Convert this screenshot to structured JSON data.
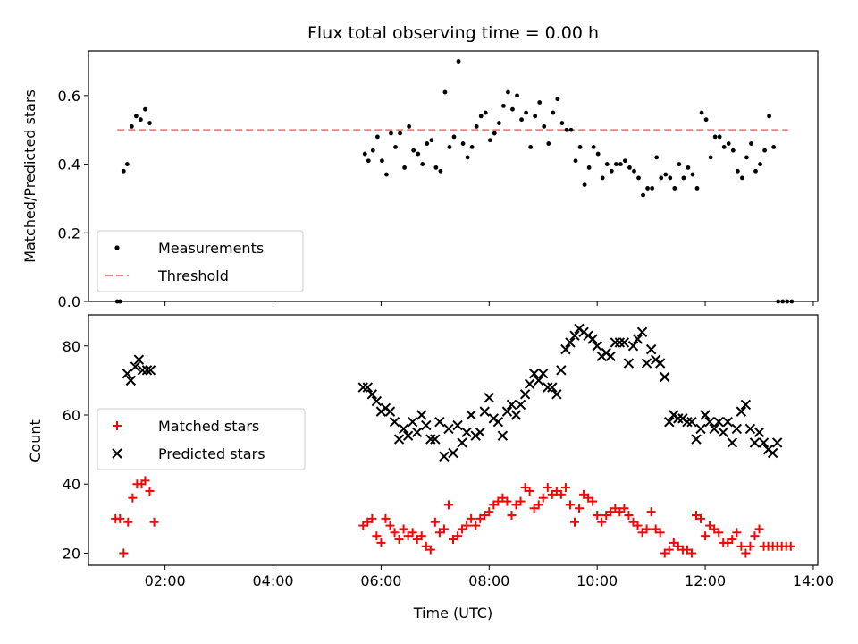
{
  "chart_data": [
    {
      "type": "scatter",
      "title": "Flux total observing time = 0.00 h",
      "ylabel": "Matched/Predicted stars",
      "xlabel": "",
      "xlim": [
        "00:35",
        "14:05"
      ],
      "ylim": [
        0,
        0.73
      ],
      "yticks": [
        0.0,
        0.2,
        0.4,
        0.6
      ],
      "ytick_labels": [
        "0.0",
        "0.2",
        "0.4",
        "0.6"
      ],
      "legend": {
        "placement": "lower-left",
        "entries": [
          "Measurements",
          "Threshold"
        ]
      },
      "threshold": {
        "name": "Threshold",
        "y": 0.5,
        "x": [
          "01:07",
          "13:32"
        ],
        "color": "#f08080"
      },
      "series": [
        {
          "name": "Measurements",
          "color": "#000000",
          "x": [
            "01:07",
            "01:10",
            "01:14",
            "01:18",
            "01:23",
            "01:28",
            "01:33",
            "01:38",
            "01:43",
            "05:42",
            "05:46",
            "05:51",
            "05:56",
            "06:01",
            "06:06",
            "06:11",
            "06:16",
            "06:21",
            "06:26",
            "06:31",
            "06:36",
            "06:41",
            "06:46",
            "06:51",
            "06:56",
            "07:01",
            "07:06",
            "07:11",
            "07:16",
            "07:21",
            "07:26",
            "07:31",
            "07:36",
            "07:41",
            "07:46",
            "07:51",
            "07:56",
            "08:01",
            "08:06",
            "08:11",
            "08:16",
            "08:21",
            "08:26",
            "08:31",
            "08:36",
            "08:41",
            "08:46",
            "08:51",
            "08:56",
            "09:01",
            "09:06",
            "09:11",
            "09:16",
            "09:21",
            "09:26",
            "09:31",
            "09:36",
            "09:41",
            "09:46",
            "09:51",
            "09:56",
            "10:01",
            "10:06",
            "10:11",
            "10:16",
            "10:21",
            "10:26",
            "10:31",
            "10:36",
            "10:41",
            "10:46",
            "10:51",
            "10:56",
            "11:01",
            "11:06",
            "11:11",
            "11:16",
            "11:21",
            "11:26",
            "11:31",
            "11:36",
            "11:41",
            "11:46",
            "11:51",
            "11:56",
            "12:01",
            "12:06",
            "12:11",
            "12:16",
            "12:21",
            "12:26",
            "12:31",
            "12:36",
            "12:41",
            "12:46",
            "12:51",
            "12:56",
            "13:01",
            "13:06",
            "13:11",
            "13:16",
            "13:21",
            "13:26",
            "13:31",
            "13:36"
          ],
          "y": [
            0.0,
            0.0,
            0.38,
            0.4,
            0.51,
            0.54,
            0.53,
            0.56,
            0.52,
            0.43,
            0.41,
            0.44,
            0.48,
            0.41,
            0.37,
            0.49,
            0.45,
            0.49,
            0.39,
            0.51,
            0.44,
            0.43,
            0.4,
            0.46,
            0.47,
            0.39,
            0.38,
            0.61,
            0.45,
            0.48,
            0.7,
            0.46,
            0.42,
            0.45,
            0.51,
            0.54,
            0.55,
            0.47,
            0.49,
            0.52,
            0.57,
            0.61,
            0.56,
            0.6,
            0.53,
            0.55,
            0.45,
            0.54,
            0.58,
            0.51,
            0.46,
            0.55,
            0.59,
            0.52,
            0.5,
            0.5,
            0.41,
            0.45,
            0.34,
            0.39,
            0.45,
            0.43,
            0.36,
            0.4,
            0.38,
            0.4,
            0.4,
            0.41,
            0.39,
            0.38,
            0.36,
            0.31,
            0.33,
            0.33,
            0.42,
            0.36,
            0.37,
            0.36,
            0.33,
            0.4,
            0.36,
            0.39,
            0.37,
            0.33,
            0.55,
            0.53,
            0.42,
            0.48,
            0.48,
            0.45,
            0.46,
            0.44,
            0.38,
            0.36,
            0.42,
            0.46,
            0.38,
            0.4,
            0.44,
            0.54,
            0.45,
            0.0,
            0.0,
            0.0,
            0.0
          ]
        }
      ]
    },
    {
      "type": "scatter",
      "title": "",
      "ylabel": "Count",
      "xlabel": "Time (UTC)",
      "xlim": [
        "00:35",
        "14:05"
      ],
      "ylim": [
        16.5,
        89
      ],
      "yticks": [
        20,
        40,
        60,
        80
      ],
      "ytick_labels": [
        "20",
        "40",
        "60",
        "80"
      ],
      "xticks": [
        "02:00",
        "04:00",
        "06:00",
        "08:00",
        "10:00",
        "12:00",
        "14:00"
      ],
      "xtick_labels": [
        "02:00",
        "04:00",
        "06:00",
        "08:00",
        "10:00",
        "12:00",
        "14:00"
      ],
      "legend": {
        "placement": "center-left",
        "entries": [
          "Matched stars",
          "Predicted stars"
        ]
      },
      "series": [
        {
          "name": "Matched stars",
          "color": "#ff0000",
          "marker": "plus",
          "x": [
            "01:05",
            "01:10",
            "01:14",
            "01:19",
            "01:24",
            "01:29",
            "01:34",
            "01:38",
            "01:43",
            "01:48",
            "05:40",
            "05:45",
            "05:50",
            "05:55",
            "06:00",
            "06:05",
            "06:10",
            "06:15",
            "06:20",
            "06:25",
            "06:30",
            "06:35",
            "06:40",
            "06:45",
            "06:50",
            "06:55",
            "07:00",
            "07:05",
            "07:10",
            "07:15",
            "07:20",
            "07:25",
            "07:30",
            "07:35",
            "07:40",
            "07:45",
            "07:50",
            "07:55",
            "08:00",
            "08:05",
            "08:10",
            "08:15",
            "08:20",
            "08:25",
            "08:30",
            "08:35",
            "08:40",
            "08:45",
            "08:50",
            "08:55",
            "09:00",
            "09:05",
            "09:10",
            "09:15",
            "09:20",
            "09:25",
            "09:30",
            "09:35",
            "09:40",
            "09:45",
            "09:50",
            "09:55",
            "10:00",
            "10:05",
            "10:10",
            "10:15",
            "10:20",
            "10:25",
            "10:30",
            "10:35",
            "10:40",
            "10:45",
            "10:50",
            "10:55",
            "11:00",
            "11:05",
            "11:10",
            "11:15",
            "11:20",
            "11:25",
            "11:30",
            "11:35",
            "11:40",
            "11:45",
            "11:50",
            "11:55",
            "12:00",
            "12:05",
            "12:10",
            "12:15",
            "12:20",
            "12:25",
            "12:30",
            "12:35",
            "12:40",
            "12:45",
            "12:50",
            "12:55",
            "13:00",
            "13:05",
            "13:10",
            "13:15",
            "13:20",
            "13:25",
            "13:30",
            "13:35"
          ],
          "y": [
            30,
            30,
            20,
            29,
            36,
            40,
            40,
            41,
            38,
            29,
            28,
            29,
            30,
            25,
            23,
            30,
            28,
            26,
            24,
            27,
            25,
            26,
            24,
            25,
            22,
            21,
            29,
            26,
            27,
            34,
            24,
            25,
            27,
            28,
            30,
            28,
            30,
            31,
            32,
            34,
            35,
            36,
            35,
            31,
            34,
            35,
            39,
            38,
            33,
            34,
            36,
            39,
            37,
            38,
            37,
            39,
            34,
            29,
            33,
            37,
            36,
            35,
            31,
            29,
            31,
            32,
            33,
            32,
            33,
            31,
            29,
            28,
            26,
            27,
            32,
            27,
            26,
            20,
            21,
            23,
            22,
            21,
            21,
            20,
            31,
            30,
            25,
            28,
            27,
            26,
            23,
            23,
            24,
            26,
            22,
            20,
            22,
            25,
            27,
            22,
            22,
            22,
            22,
            22,
            22,
            22
          ],
          "yy": []
        },
        {
          "name": "Predicted stars",
          "color": "#000000",
          "marker": "x",
          "x": [
            "01:18",
            "01:22",
            "01:27",
            "01:31",
            "01:35",
            "01:40",
            "01:44",
            "05:40",
            "05:45",
            "05:50",
            "05:55",
            "06:00",
            "06:05",
            "06:10",
            "06:15",
            "06:20",
            "06:25",
            "06:30",
            "06:35",
            "06:40",
            "06:45",
            "06:50",
            "06:55",
            "07:00",
            "07:05",
            "07:10",
            "07:15",
            "07:20",
            "07:25",
            "07:30",
            "07:35",
            "07:40",
            "07:45",
            "07:50",
            "07:55",
            "08:00",
            "08:05",
            "08:10",
            "08:15",
            "08:20",
            "08:25",
            "08:30",
            "08:35",
            "08:40",
            "08:45",
            "08:50",
            "08:55",
            "09:00",
            "09:05",
            "09:10",
            "09:15",
            "09:20",
            "09:25",
            "09:30",
            "09:35",
            "09:40",
            "09:45",
            "09:50",
            "09:55",
            "10:00",
            "10:05",
            "10:10",
            "10:15",
            "10:20",
            "10:25",
            "10:30",
            "10:35",
            "10:40",
            "10:45",
            "10:50",
            "10:55",
            "11:00",
            "11:05",
            "11:10",
            "11:15",
            "11:20",
            "11:25",
            "11:30",
            "11:35",
            "11:40",
            "11:45",
            "11:50",
            "11:55",
            "12:00",
            "12:05",
            "12:10",
            "12:15",
            "12:20",
            "12:25",
            "12:30",
            "12:35",
            "12:40",
            "12:45",
            "12:50",
            "12:55",
            "13:00",
            "13:05",
            "13:10",
            "13:15",
            "13:20"
          ],
          "y": [
            72,
            70,
            74,
            76,
            73,
            73,
            73,
            68,
            68,
            66,
            64,
            61,
            62,
            61,
            58,
            53,
            56,
            54,
            58,
            55,
            60,
            57,
            53,
            53,
            58,
            48,
            56,
            49,
            57,
            52,
            55,
            60,
            54,
            55,
            61,
            65,
            59,
            58,
            54,
            61,
            63,
            60,
            63,
            66,
            69,
            72,
            70,
            72,
            68,
            68,
            66,
            73,
            79,
            81,
            83,
            85,
            84,
            83,
            82,
            80,
            77,
            78,
            77,
            81,
            81,
            81,
            75,
            80,
            82,
            84,
            75,
            79,
            76,
            75,
            71,
            58,
            60,
            59,
            59,
            58,
            58,
            53,
            56,
            60,
            58,
            56,
            58,
            55,
            58,
            52,
            56,
            61,
            63,
            56,
            52,
            55,
            52,
            50,
            49,
            52
          ]
        }
      ]
    }
  ]
}
